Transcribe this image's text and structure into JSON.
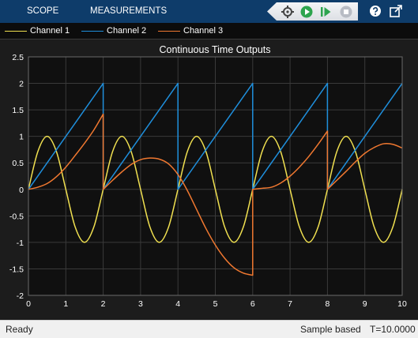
{
  "toolstrip": {
    "tabs": [
      "SCOPE",
      "MEASUREMENTS"
    ],
    "buttons": [
      "signal-selector-icon",
      "run-icon",
      "step-forward-icon",
      "stop-icon",
      "help-icon",
      "undock-icon"
    ]
  },
  "legend": [
    {
      "label": "Channel 1",
      "color": "#f0e050"
    },
    {
      "label": "Channel 2",
      "color": "#1f8fdc"
    },
    {
      "label": "Channel 3",
      "color": "#f07830"
    }
  ],
  "status": {
    "ready": "Ready",
    "mode": "Sample based",
    "time": "T=10.0000"
  },
  "chart_data": {
    "type": "line",
    "title": "Continuous Time Outputs",
    "xlabel": "",
    "ylabel": "",
    "xlim": [
      0,
      10
    ],
    "ylim": [
      -2,
      2.5
    ],
    "xticks": [
      "0",
      "1",
      "2",
      "3",
      "4",
      "5",
      "6",
      "7",
      "8",
      "9",
      "10"
    ],
    "yticks": [
      "-2",
      "-1.5",
      "-1",
      "-0.5",
      "0",
      "0.5",
      "1",
      "1.5",
      "2",
      "2.5"
    ],
    "grid": true,
    "legend_position": "top",
    "series": [
      {
        "name": "Channel 1",
        "color": "#f0e050",
        "x": [
          0,
          0.25,
          0.5,
          0.75,
          1,
          1.25,
          1.5,
          1.75,
          2,
          2.25,
          2.5,
          2.75,
          3,
          3.25,
          3.5,
          3.75,
          4,
          4.25,
          4.5,
          4.75,
          5,
          5.25,
          5.5,
          5.75,
          6,
          6.25,
          6.5,
          6.75,
          7,
          7.25,
          7.5,
          7.75,
          8,
          8.25,
          8.5,
          8.75,
          9,
          9.25,
          9.5,
          9.75,
          10
        ],
        "y": [
          0,
          0.71,
          1,
          0.71,
          0,
          -0.71,
          -1,
          -0.71,
          0,
          0.71,
          1,
          0.71,
          0,
          -0.71,
          -1,
          -0.71,
          0,
          0.71,
          1,
          0.71,
          0,
          -0.71,
          -1,
          -0.71,
          0,
          0.71,
          1,
          0.71,
          0,
          -0.71,
          -1,
          -0.71,
          0,
          0.71,
          1,
          0.71,
          0,
          -0.71,
          -1,
          -0.71,
          0
        ]
      },
      {
        "name": "Channel 2",
        "color": "#1f8fdc",
        "x": [
          0,
          2,
          2,
          4,
          4,
          6,
          6,
          8,
          8,
          10
        ],
        "y": [
          0,
          2,
          0,
          2,
          0,
          2,
          0,
          2,
          0,
          2
        ]
      },
      {
        "name": "Channel 3",
        "color": "#f07830",
        "x": [
          0,
          0.25,
          0.5,
          0.75,
          1,
          1.25,
          1.5,
          1.75,
          2,
          2,
          2.25,
          2.5,
          2.75,
          3,
          3.25,
          3.5,
          3.75,
          4,
          4.25,
          4.5,
          4.75,
          5,
          5.25,
          5.5,
          5.75,
          6,
          6,
          6.25,
          6.5,
          6.75,
          7,
          7.25,
          7.5,
          7.75,
          8,
          8,
          8.25,
          8.5,
          8.75,
          9,
          9.25,
          9.5,
          9.75,
          10
        ],
        "y": [
          0,
          0.04,
          0.11,
          0.24,
          0.42,
          0.64,
          0.87,
          1.12,
          1.42,
          0,
          0.17,
          0.33,
          0.47,
          0.56,
          0.59,
          0.57,
          0.48,
          0.28,
          -0.02,
          -0.38,
          -0.74,
          -1.05,
          -1.3,
          -1.48,
          -1.58,
          -1.62,
          0,
          0.02,
          0.04,
          0.12,
          0.25,
          0.42,
          0.62,
          0.85,
          1.1,
          0,
          0.17,
          0.34,
          0.52,
          0.68,
          0.79,
          0.86,
          0.85,
          0.78
        ]
      }
    ]
  }
}
